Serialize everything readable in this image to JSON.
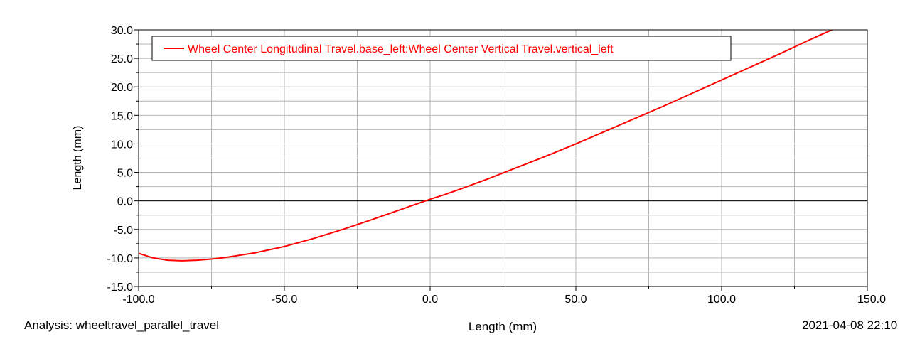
{
  "chart_data": {
    "type": "line",
    "xlabel": "Length (mm)",
    "ylabel": "Length (mm)",
    "xlim": [
      -100,
      150
    ],
    "ylim": [
      -15,
      30
    ],
    "x_ticks": [
      "-100.0",
      "-50.0",
      "0.0",
      "50.0",
      "100.0",
      "150.0"
    ],
    "y_ticks": [
      "30.0",
      "25.0",
      "20.0",
      "15.0",
      "10.0",
      "5.0",
      "0.0",
      "-5.0",
      "-10.0",
      "-15.0"
    ],
    "grid": true,
    "legend_position": "top-left",
    "series": [
      {
        "name": "Wheel Center Longitudinal Travel.base_left:Wheel Center Vertical Travel.vertical_left",
        "color": "#ff0000",
        "x": [
          -100,
          -95,
          -90,
          -85,
          -80,
          -75,
          -70,
          -60,
          -50,
          -40,
          -30,
          -20,
          -10,
          0,
          5,
          10,
          20,
          30,
          40,
          50,
          60,
          70,
          80,
          90,
          100,
          110,
          120,
          130,
          140,
          150
        ],
        "y": [
          -9.2,
          -10.0,
          -10.4,
          -10.5,
          -10.4,
          -10.2,
          -9.9,
          -9.1,
          -8.0,
          -6.6,
          -5.0,
          -3.3,
          -1.5,
          0.3,
          1.1,
          2.0,
          3.9,
          5.9,
          7.9,
          10.0,
          12.2,
          14.4,
          16.6,
          18.9,
          21.2,
          23.5,
          25.8,
          28.2,
          30.5,
          32.8
        ]
      }
    ]
  },
  "footer": {
    "analysis": "Analysis:  wheeltravel_parallel_travel",
    "xlabel": "Length (mm)",
    "timestamp": "2021-04-08 22:10"
  }
}
